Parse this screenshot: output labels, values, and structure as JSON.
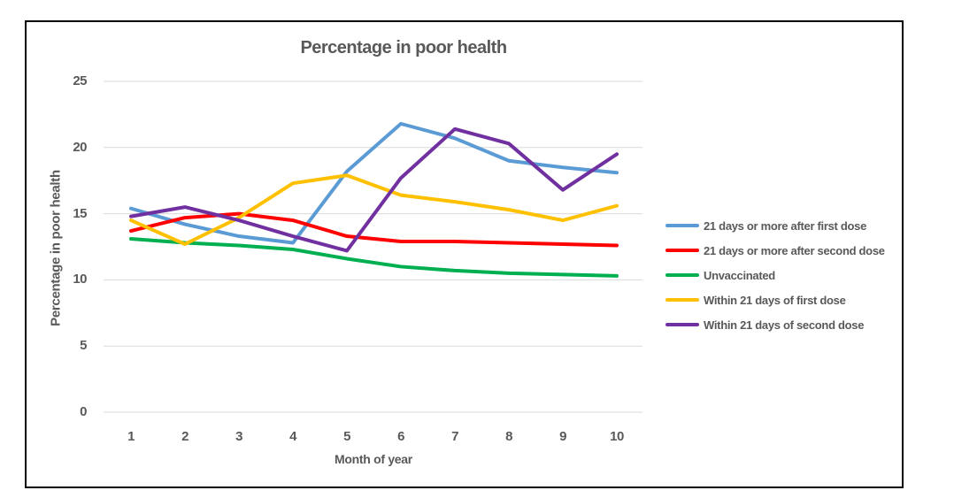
{
  "window": {
    "background": "#FFFFFF",
    "frame_border_color": "#000000"
  },
  "chart_data": {
    "type": "line",
    "title": "Percentage in poor health",
    "xlabel": "Month of year",
    "ylabel": "Percentage in poor health",
    "x": [
      1,
      2,
      3,
      4,
      5,
      6,
      7,
      8,
      9,
      10
    ],
    "y_ticks": [
      0,
      5,
      10,
      15,
      20,
      25
    ],
    "ylim": [
      0,
      25
    ],
    "grid": true,
    "gridline_color": "#D9D9D9",
    "text_color": "#595959",
    "legend_position": "right",
    "series": [
      {
        "name": "21 days or more after first dose",
        "color": "#5B9BD5",
        "values": [
          15.4,
          14.2,
          13.3,
          12.8,
          18.2,
          21.8,
          20.7,
          19.0,
          18.5,
          18.1
        ]
      },
      {
        "name": "21 days or more after second dose",
        "color": "#FF0000",
        "values": [
          13.7,
          14.7,
          15.0,
          14.5,
          13.3,
          12.9,
          12.9,
          12.8,
          12.7,
          12.6
        ]
      },
      {
        "name": "Unvaccinated",
        "color": "#00B050",
        "values": [
          13.1,
          12.8,
          12.6,
          12.3,
          11.6,
          11.0,
          10.7,
          10.5,
          10.4,
          10.3
        ]
      },
      {
        "name": "Within 21 days of first dose",
        "color": "#FFC000",
        "values": [
          14.5,
          12.7,
          14.7,
          17.3,
          17.9,
          16.4,
          15.9,
          15.3,
          14.5,
          15.6
        ]
      },
      {
        "name": "Within 21 days of second dose",
        "color": "#7030A0",
        "values": [
          14.8,
          15.5,
          14.5,
          13.3,
          12.2,
          17.7,
          21.4,
          20.3,
          16.8,
          19.5
        ]
      }
    ]
  }
}
